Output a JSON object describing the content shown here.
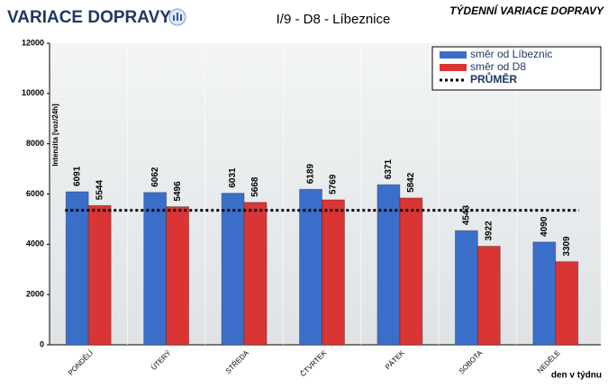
{
  "chart_data": {
    "type": "bar",
    "title": "VARIACE DOPRAVY",
    "subtitle": "I/9 - D8 - Líbeznice",
    "header_right": "TÝDENNÍ VARIACE DOPRAVY",
    "y_label": "Intenzita [voz/24h]",
    "x_label": "den v týdnu",
    "categories": [
      "PONDĚLÍ",
      "ÚTERÝ",
      "STŘEDA",
      "ČTVRTEK",
      "PÁTEK",
      "SOBOTA",
      "NEDĚLE"
    ],
    "series": [
      {
        "name": "směr od Líbeznic",
        "color": "#3a6fc9",
        "values": [
          6091,
          6062,
          6031,
          6189,
          6371,
          4543,
          4090
        ]
      },
      {
        "name": "směr od D8",
        "color": "#d93535",
        "values": [
          5544,
          5496,
          5668,
          5769,
          5842,
          3922,
          3309
        ]
      }
    ],
    "average": {
      "name": "PRŮMĚR",
      "value": 5352,
      "color": "#000000"
    },
    "ylim": [
      0,
      12000
    ],
    "yticks": [
      0,
      2000,
      4000,
      6000,
      8000,
      10000,
      12000
    ],
    "legend": "top-right"
  }
}
